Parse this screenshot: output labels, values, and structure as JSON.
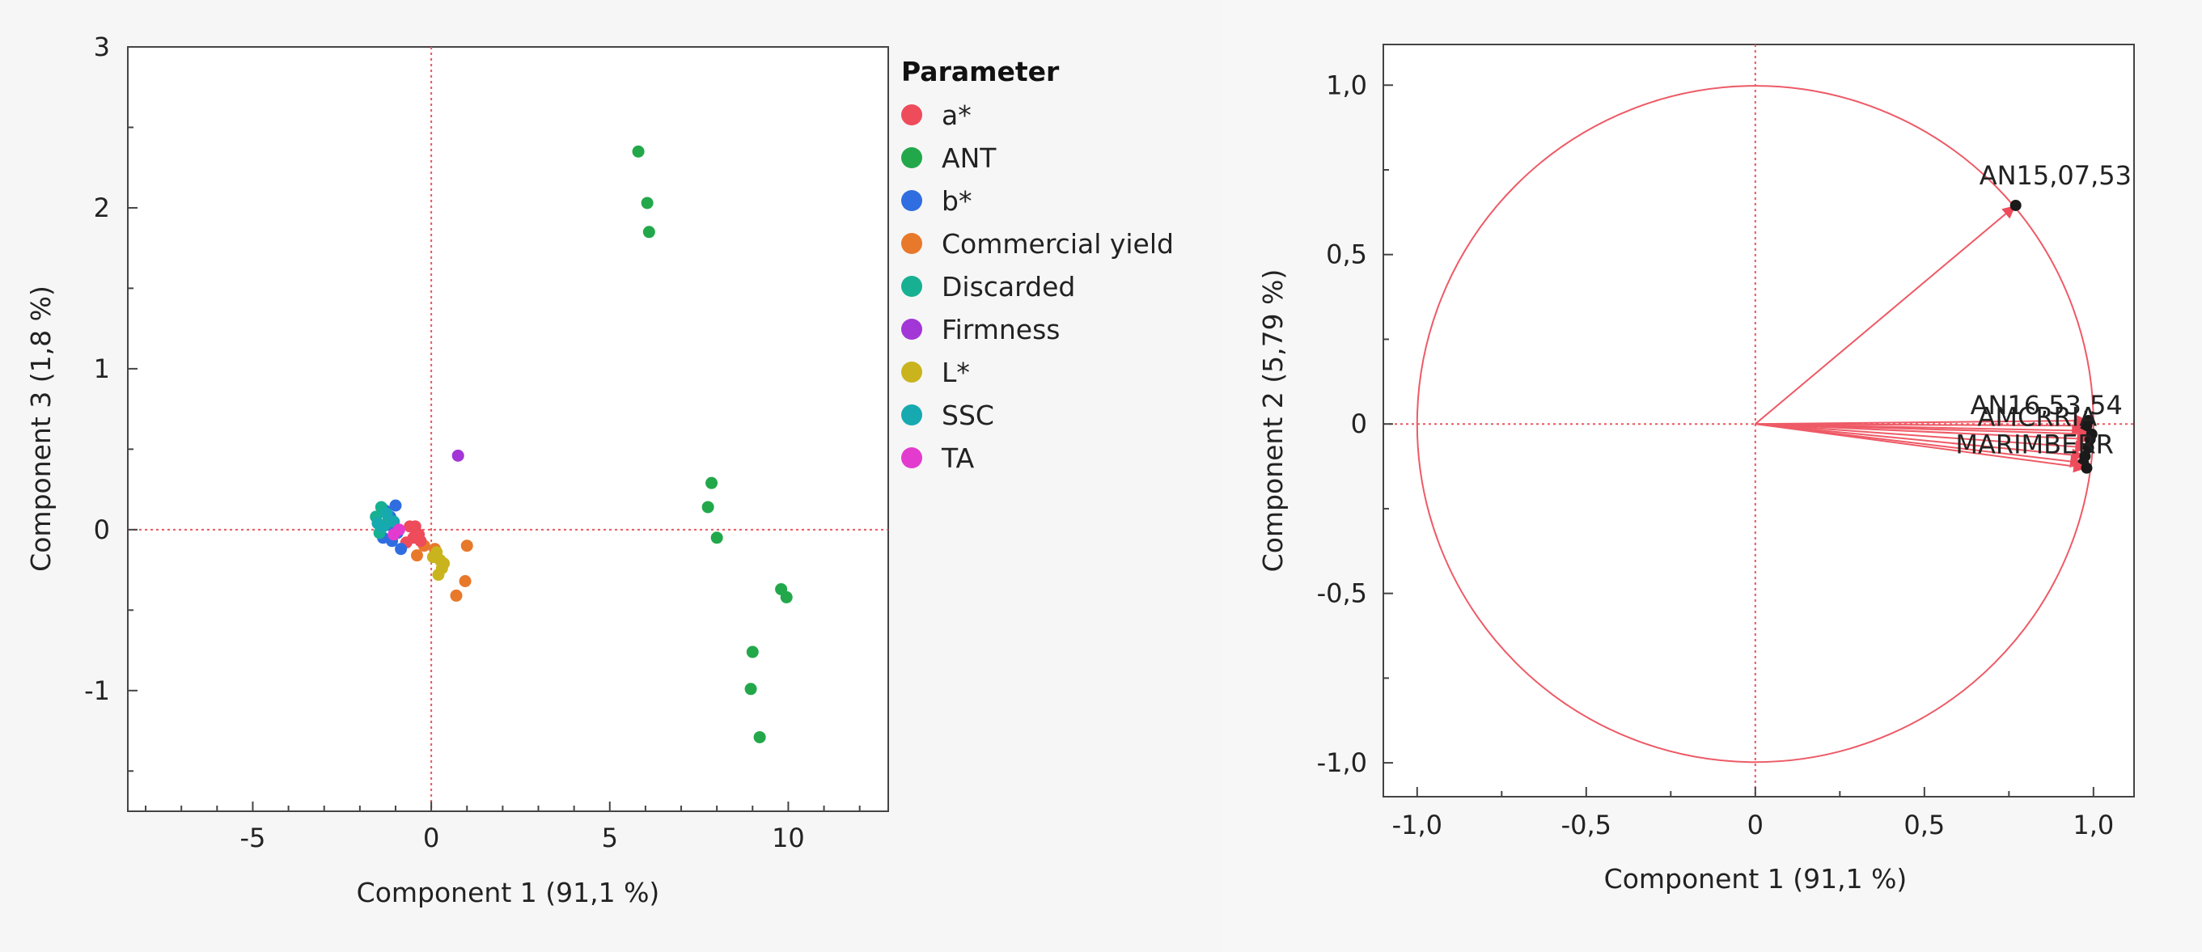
{
  "chart_data": [
    {
      "type": "scatter",
      "title": "",
      "xlabel": "Component 1 (91,1 %)",
      "ylabel": "Component 3  (1,8 %)",
      "xlim": [
        -8.5,
        12.8
      ],
      "ylim": [
        -1.75,
        3.0
      ],
      "xticks": [
        -5,
        0,
        5,
        10
      ],
      "yticks": [
        -1,
        0,
        1,
        2,
        3
      ],
      "reference_lines": {
        "x": 0,
        "y": 0,
        "style": "dotted",
        "color": "#e8585f"
      },
      "legend": {
        "title": "Parameter",
        "position": "right",
        "entries": [
          {
            "label": "a*",
            "color": "#ee4b5b"
          },
          {
            "label": "ANT",
            "color": "#22a84a"
          },
          {
            "label": "b*",
            "color": "#2f6de0"
          },
          {
            "label": "Commercial yield",
            "color": "#e8782a"
          },
          {
            "label": "Discarded",
            "color": "#17b092"
          },
          {
            "label": "Firmness",
            "color": "#a236d6"
          },
          {
            "label": "L*",
            "color": "#c9b41e"
          },
          {
            "label": "SSC",
            "color": "#16a9b0"
          },
          {
            "label": "TA",
            "color": "#e33bce"
          }
        ]
      },
      "series": [
        {
          "name": "ANT",
          "points": [
            [
              5.8,
              2.35
            ],
            [
              6.05,
              2.03
            ],
            [
              6.1,
              1.85
            ],
            [
              7.85,
              0.29
            ],
            [
              7.75,
              0.14
            ],
            [
              8.0,
              -0.05
            ],
            [
              9.8,
              -0.37
            ],
            [
              9.95,
              -0.42
            ],
            [
              9.0,
              -0.76
            ],
            [
              8.95,
              -0.99
            ],
            [
              9.2,
              -1.29
            ]
          ]
        },
        {
          "name": "Firmness",
          "points": [
            [
              0.75,
              0.46
            ]
          ]
        },
        {
          "name": "Commercial yield",
          "points": [
            [
              1.0,
              -0.1
            ],
            [
              0.95,
              -0.32
            ],
            [
              0.7,
              -0.41
            ],
            [
              -0.2,
              -0.1
            ],
            [
              -0.4,
              -0.16
            ],
            [
              0.1,
              -0.12
            ]
          ]
        },
        {
          "name": "L*",
          "points": [
            [
              0.15,
              -0.14
            ],
            [
              0.25,
              -0.19
            ],
            [
              0.3,
              -0.24
            ],
            [
              0.2,
              -0.28
            ],
            [
              0.35,
              -0.21
            ],
            [
              0.05,
              -0.17
            ]
          ]
        },
        {
          "name": "a*",
          "points": [
            [
              -0.6,
              0.02
            ],
            [
              -0.45,
              0.02
            ],
            [
              -0.5,
              -0.05
            ],
            [
              -0.3,
              -0.07
            ],
            [
              -0.7,
              -0.08
            ],
            [
              -0.35,
              -0.03
            ]
          ]
        },
        {
          "name": "b*",
          "points": [
            [
              -1.3,
              0.12
            ],
            [
              -1.0,
              0.15
            ],
            [
              -1.2,
              0.03
            ],
            [
              -0.95,
              -0.02
            ],
            [
              -1.1,
              -0.07
            ],
            [
              -0.85,
              -0.12
            ],
            [
              -1.35,
              -0.05
            ],
            [
              -1.15,
              0.08
            ]
          ]
        },
        {
          "name": "Discarded",
          "points": [
            [
              -1.55,
              0.08
            ],
            [
              -1.4,
              0.14
            ],
            [
              -1.3,
              0.03
            ],
            [
              -1.45,
              -0.02
            ],
            [
              -1.2,
              0.06
            ]
          ]
        },
        {
          "name": "SSC",
          "points": [
            [
              -1.35,
              0.02
            ],
            [
              -1.25,
              0.1
            ],
            [
              -1.05,
              0.05
            ],
            [
              -1.5,
              0.04
            ]
          ]
        },
        {
          "name": "TA",
          "points": [
            [
              -1.05,
              -0.03
            ],
            [
              -0.9,
              0.0
            ]
          ]
        }
      ]
    },
    {
      "type": "loading_plot",
      "title": "",
      "xlabel": "Component 1 (91,1 %)",
      "ylabel": "Component 2  (5,79 %)",
      "xlim": [
        -1.1,
        1.12
      ],
      "ylim": [
        -1.1,
        1.12
      ],
      "xtick_labels": [
        "-1,0",
        "-0,5",
        "0",
        "0,5",
        "1,0"
      ],
      "xtick_values": [
        -1.0,
        -0.5,
        0,
        0.5,
        1.0
      ],
      "ytick_labels": [
        "1,0",
        "0,5",
        "0",
        "-0,5",
        "-1,0"
      ],
      "ytick_values": [
        1.0,
        0.5,
        0,
        -0.5,
        -1.0
      ],
      "unit_circle": true,
      "circle_color": "#ee5a66",
      "reference_lines": {
        "x": 0,
        "y": 0,
        "style": "dotted",
        "color": "#e8585f"
      },
      "vectors": [
        {
          "label": "AN15,07,53",
          "x": 0.77,
          "y": 0.645,
          "label_visible": true
        },
        {
          "label": "AN16,53,54",
          "x": 0.985,
          "y": 0.01,
          "label_visible": true
        },
        {
          "label": "AMCRRIA",
          "x": 0.98,
          "y": -0.005,
          "label_visible": true
        },
        {
          "label": "MARIMBERR",
          "x": 0.975,
          "y": -0.02,
          "label_visible": true
        },
        {
          "label": "",
          "x": 0.99,
          "y": -0.045,
          "label_visible": false
        },
        {
          "label": "",
          "x": 0.985,
          "y": -0.07,
          "label_visible": false
        },
        {
          "label": "",
          "x": 0.975,
          "y": -0.095,
          "label_visible": false
        },
        {
          "label": "",
          "x": 0.97,
          "y": -0.115,
          "label_visible": false
        },
        {
          "label": "",
          "x": 0.98,
          "y": -0.13,
          "label_visible": false
        },
        {
          "label": "",
          "x": 0.995,
          "y": -0.03,
          "label_visible": false
        }
      ]
    }
  ]
}
